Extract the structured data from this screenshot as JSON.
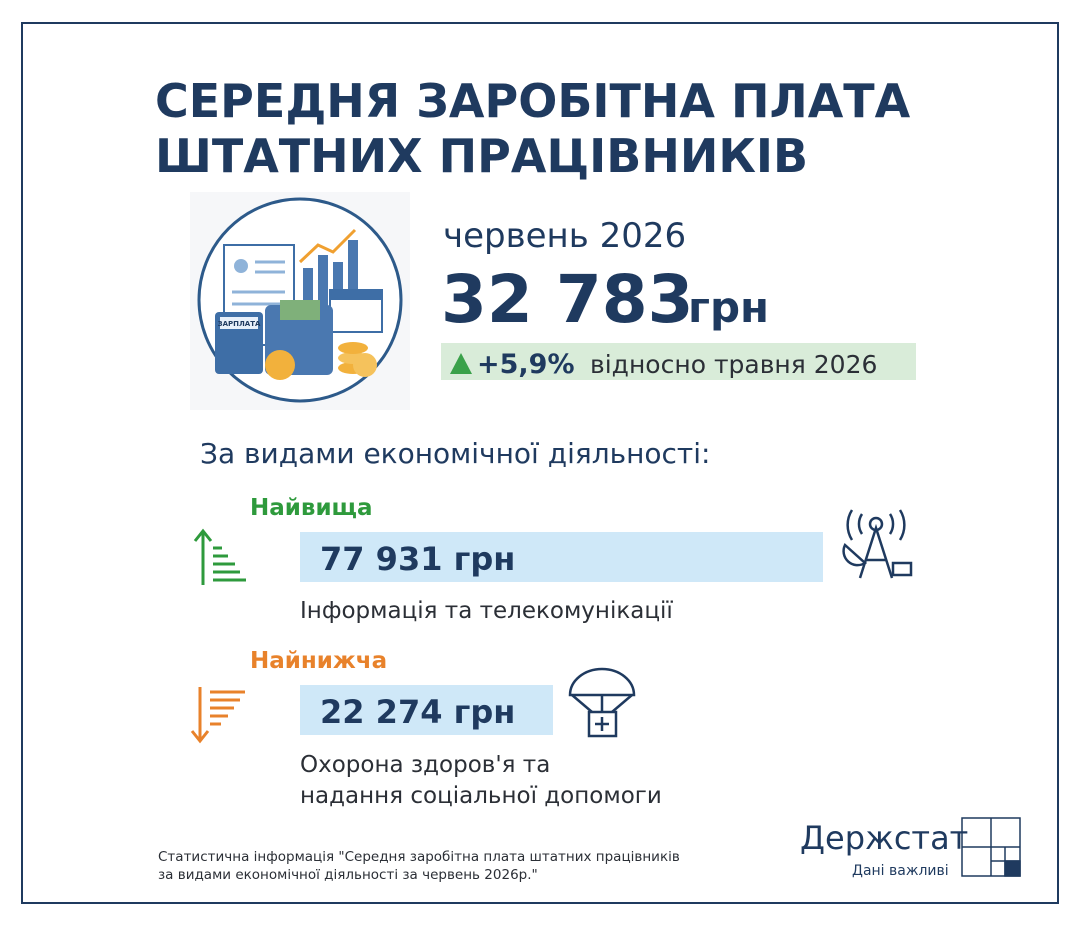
{
  "title": [
    "СЕРЕДНЯ ЗАРОБІТНА ПЛАТА",
    "ШТАТНИХ ПРАЦІВНИКІВ"
  ],
  "illustration_label": "ЗАРПЛАТА",
  "period": "червень 2026",
  "average": {
    "value": "32 783",
    "unit": "грн"
  },
  "change": {
    "value": "+5,9%",
    "text": "відносно травня 2026"
  },
  "section_title": "За видами економічної діяльності:",
  "highest": {
    "label": "Найвища",
    "value": "77 931 грн",
    "activity": [
      "Інформація та телекомунікації"
    ]
  },
  "lowest": {
    "label": "Найнижча",
    "value": "22 274 грн",
    "activity": [
      "Охорона здоров'я та",
      "надання соціальної допомоги"
    ]
  },
  "source": [
    "Статистична інформація \"Середня заробітна плата штатних працівників",
    "за видами економічної діяльності за червень 2026р.\""
  ],
  "logo": {
    "name": "Держстат",
    "tagline": "Дані важливі"
  }
}
